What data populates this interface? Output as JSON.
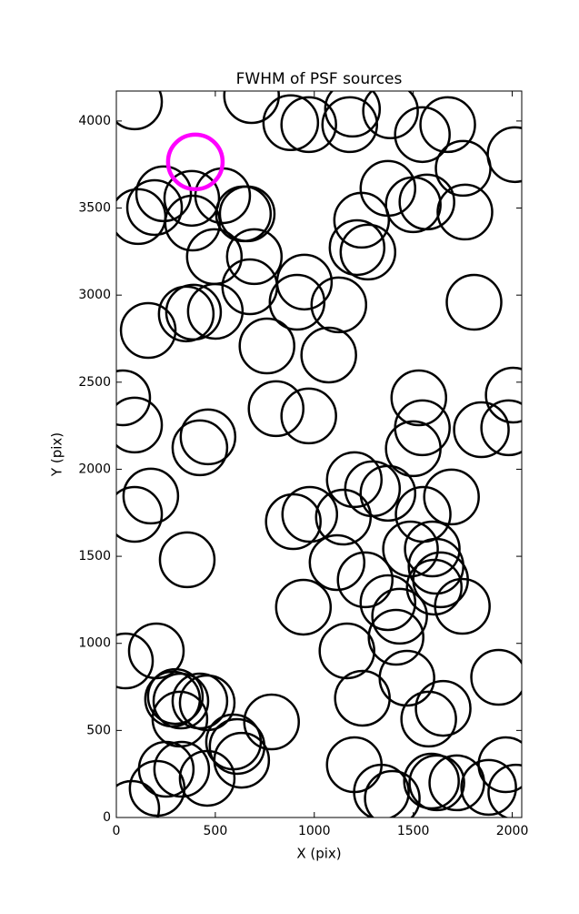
{
  "chart_data": {
    "type": "scatter",
    "title": "FWHM of PSF sources",
    "xlabel": "X (pix)",
    "ylabel": "Y (pix)",
    "xlim": [
      0,
      2048
    ],
    "ylim": [
      0,
      4172
    ],
    "xticks": [
      0,
      500,
      1000,
      1500,
      2000
    ],
    "yticks": [
      0,
      500,
      1000,
      1500,
      2000,
      2500,
      3000,
      3500,
      4000
    ],
    "series": [
      {
        "color": "#000000",
        "x": [
          92,
          683,
          881,
          972,
          1179,
          1193,
          1385,
          1546,
          1674,
          1752,
          2014,
          239,
          193,
          110,
          381,
          385,
          537,
          642,
          661,
          495,
          697,
          1372,
          1500,
          1569,
          1761,
          1239,
          1216,
          1271,
          950,
          913,
          1124,
          674,
          353,
          390,
          500,
          161,
          1807,
          761,
          1073,
          32,
          92,
          807,
          972,
          1528,
          1546,
          1500,
          1844,
          2005,
          1982,
          463,
          422,
          174,
          92,
          1202,
          1294,
          1372,
          1693,
          1550,
          977,
          894,
          1147,
          358,
          1486,
          1596,
          1615,
          1638,
          1606,
          1115,
          1257,
          1372,
          1431,
          1413,
          1748,
          945,
          46,
          202,
          1165,
          1468,
          1931,
          1243,
          1651,
          1578,
          284,
          298,
          326,
          459,
          422,
          321,
          784,
          592,
          610,
          633,
          252,
          330,
          459,
          206,
          78,
          1202,
          1339,
          1394,
          1592,
          1619,
          1720,
          1881,
          1968,
          2018
        ],
        "y": [
          4110,
          4146,
          3990,
          3979,
          3979,
          4068,
          4058,
          3922,
          3979,
          3728,
          3807,
          3582,
          3503,
          3451,
          3556,
          3414,
          3571,
          3467,
          3467,
          3221,
          3221,
          3613,
          3519,
          3535,
          3477,
          3430,
          3273,
          3247,
          3075,
          2959,
          2944,
          3048,
          2892,
          2902,
          2907,
          2797,
          2959,
          2708,
          2656,
          2410,
          2254,
          2348,
          2306,
          2410,
          2238,
          2118,
          2227,
          2426,
          2238,
          2186,
          2123,
          1846,
          1741,
          1940,
          1888,
          1862,
          1841,
          1741,
          1741,
          1699,
          1725,
          1480,
          1542,
          1542,
          1443,
          1365,
          1323,
          1464,
          1365,
          1234,
          1156,
          1035,
          1213,
          1208,
          899,
          957,
          957,
          800,
          805,
          685,
          627,
          565,
          680,
          695,
          669,
          659,
          669,
          565,
          549,
          434,
          408,
          329,
          277,
          277,
          225,
          167,
          52,
          303,
          146,
          110,
          209,
          199,
          199,
          173,
          303,
          146
        ]
      },
      {
        "color": "#ff00ff",
        "x": [
          399
        ],
        "y": [
          3765
        ]
      }
    ]
  }
}
